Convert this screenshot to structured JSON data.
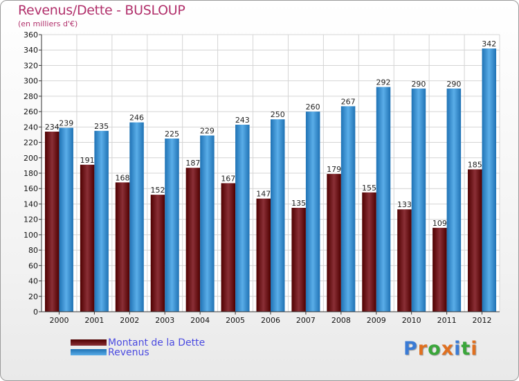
{
  "title": "Revenus/Dette - BUSLOUP",
  "subtitle": "(en milliers d'€)",
  "brand": "Proxiti",
  "colors": {
    "dette_dark": "#4f0000",
    "dette_light": "#8a2f36",
    "revenus_dark": "#1f72b4",
    "revenus_light": "#5aade8",
    "axis_text": "#111111",
    "title": "#b1306b",
    "legend_text": "#4a4ae0"
  },
  "legend": {
    "dette": "Montant de la Dette",
    "revenus": "Revenus"
  },
  "chart_data": {
    "type": "bar",
    "categories": [
      "2000",
      "2001",
      "2002",
      "2003",
      "2004",
      "2005",
      "2006",
      "2007",
      "2008",
      "2009",
      "2010",
      "2011",
      "2012"
    ],
    "series": [
      {
        "name": "Montant de la Dette",
        "values": [
          234,
          191,
          168,
          152,
          187,
          167,
          147,
          135,
          179,
          155,
          133,
          109,
          185
        ]
      },
      {
        "name": "Revenus",
        "values": [
          239,
          235,
          246,
          225,
          229,
          243,
          250,
          260,
          267,
          292,
          290,
          290,
          342
        ]
      }
    ],
    "yticks": [
      0,
      20,
      40,
      60,
      80,
      100,
      120,
      140,
      160,
      180,
      200,
      220,
      240,
      260,
      280,
      300,
      320,
      340,
      360
    ],
    "ylim": [
      0,
      360
    ],
    "grid": true,
    "xlabel": "",
    "ylabel": ""
  }
}
